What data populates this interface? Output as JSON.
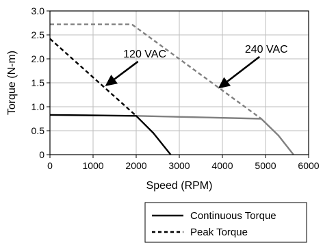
{
  "chart_data": {
    "type": "line",
    "title": "",
    "xlabel": "Speed (RPM)",
    "ylabel": "Torque (N-m)",
    "xlim": [
      0,
      6000
    ],
    "ylim": [
      0,
      3.0
    ],
    "xticks": [
      "0",
      "1000",
      "2000",
      "3000",
      "4000",
      "5000",
      "6000"
    ],
    "yticks": [
      "0",
      "0.5",
      "1.0",
      "1.5",
      "2.0",
      "2.5",
      "3.0"
    ],
    "grid": true,
    "series": [
      {
        "name": "Continuous Torque",
        "group": "120 VAC",
        "style": "solid",
        "color": "#000000",
        "points": [
          [
            0,
            0.83
          ],
          [
            2000,
            0.81
          ],
          [
            2400,
            0.45
          ],
          [
            2800,
            0.0
          ]
        ]
      },
      {
        "name": "Peak Torque",
        "group": "120 VAC",
        "style": "dashed",
        "color": "#000000",
        "points": [
          [
            0,
            2.42
          ],
          [
            2000,
            0.81
          ]
        ]
      },
      {
        "name": "Continuous Torque",
        "group": "240 VAC",
        "style": "solid",
        "color": "#808080",
        "points": [
          [
            2000,
            0.81
          ],
          [
            4900,
            0.75
          ],
          [
            5300,
            0.4
          ],
          [
            5650,
            0.0
          ]
        ]
      },
      {
        "name": "Peak Torque",
        "group": "240 VAC",
        "style": "dashed",
        "color": "#808080",
        "points": [
          [
            0,
            2.72
          ],
          [
            1900,
            2.72
          ],
          [
            4900,
            0.75
          ]
        ]
      }
    ],
    "annotations": [
      {
        "text": "120 VAC",
        "label_at": [
          2200,
          2.03
        ],
        "arrow_to": [
          1280,
          1.43
        ]
      },
      {
        "text": "240 VAC",
        "label_at": [
          5020,
          2.13
        ],
        "arrow_to": [
          3900,
          1.38
        ]
      }
    ],
    "legend": {
      "position": "bottom-right",
      "entries": [
        {
          "label": "Continuous Torque",
          "style": "solid"
        },
        {
          "label": "Peak Torque",
          "style": "dashed"
        }
      ]
    }
  }
}
